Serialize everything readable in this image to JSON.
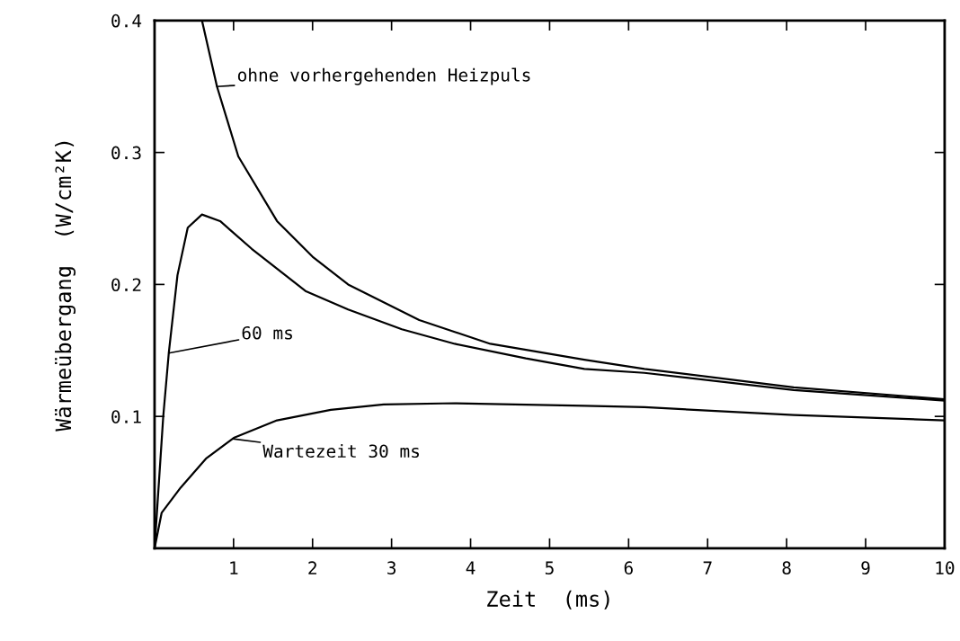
{
  "chart_data": {
    "type": "line",
    "xlabel": "Zeit  (ms)",
    "ylabel": "Wärmeübergang  (W/cm²K)",
    "xlim": [
      0,
      10
    ],
    "ylim": [
      0,
      0.4
    ],
    "xticks": [
      1,
      2,
      3,
      4,
      5,
      6,
      7,
      8,
      9,
      10
    ],
    "yticks": [
      0.1,
      0.2,
      0.3,
      0.4
    ],
    "grid": false,
    "legend": false,
    "marker": "none",
    "line_style": "solid",
    "series": [
      {
        "color": "#000000",
        "x": [
          0.6,
          0.79,
          1.06,
          1.55,
          2.0,
          2.45,
          3.35,
          4.25,
          5.44,
          6.2,
          8.09,
          10
        ],
        "values": [
          0.4,
          0.35,
          0.297,
          0.248,
          0.221,
          0.2,
          0.173,
          0.155,
          0.143,
          0.136,
          0.122,
          0.113
        ]
      },
      {
        "color": "#000000",
        "x": [
          0,
          0.11,
          0.18,
          0.29,
          0.42,
          0.6,
          0.83,
          1.23,
          1.91,
          2.45,
          3.13,
          3.8,
          4.7,
          5.44,
          6.2,
          8.09,
          10
        ],
        "values": [
          0,
          0.1,
          0.148,
          0.207,
          0.243,
          0.253,
          0.248,
          0.227,
          0.195,
          0.181,
          0.166,
          0.155,
          0.144,
          0.136,
          0.133,
          0.12,
          0.112
        ]
      },
      {
        "color": "#000000",
        "x": [
          0,
          0.09,
          0.33,
          0.65,
          1.01,
          1.55,
          2.23,
          2.9,
          3.8,
          5.44,
          6.2,
          8.09,
          10
        ],
        "values": [
          0,
          0.027,
          0.046,
          0.068,
          0.084,
          0.097,
          0.105,
          0.109,
          0.11,
          0.108,
          0.107,
          0.101,
          0.097
        ]
      }
    ],
    "annotations": [
      {
        "text": "ohne vorhergehenden Heizpuls",
        "x": 0.79,
        "y": 0.35
      },
      {
        "text": "60 ms",
        "x": 0.18,
        "y": 0.148
      },
      {
        "text": "Wartezeit 30 ms",
        "x": 0.99,
        "y": 0.083
      }
    ]
  }
}
